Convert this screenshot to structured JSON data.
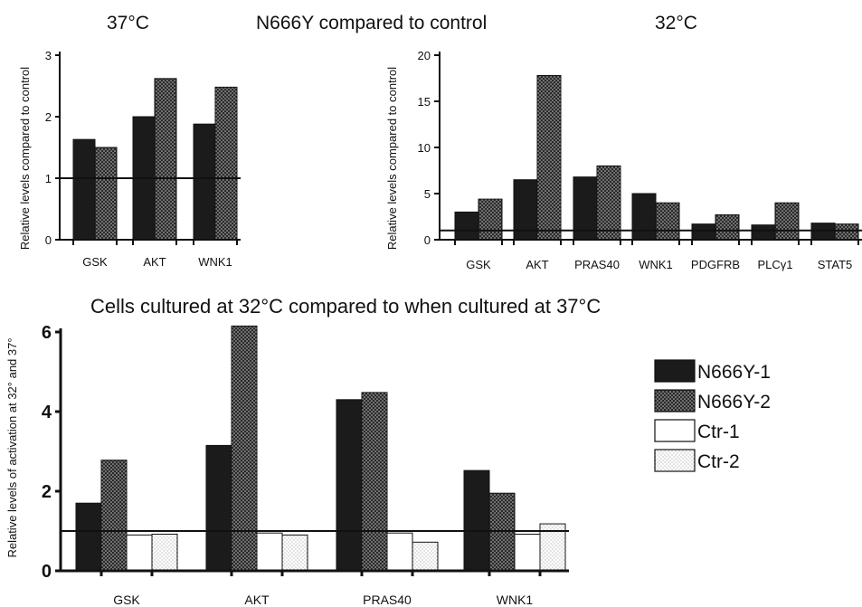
{
  "figure": {
    "heading_left": "37°C",
    "heading_center": "N666Y compared to control",
    "heading_right": "32°C",
    "heading_bottom": "Cells cultured at 32°C compared to when cultured at 37°C"
  },
  "colors": {
    "dark": "#1b1b1b",
    "pattern_dark": "#2a2a2a",
    "white": "#ffffff",
    "axis": "#111111",
    "reference_line": "#111111"
  },
  "chart_data": [
    {
      "type": "bar",
      "title": "37°C",
      "ylabel": "Relative levels compared to control",
      "categories": [
        "GSK",
        "AKT",
        "WNK1"
      ],
      "series": [
        {
          "pattern": "solid",
          "values": [
            1.63,
            2.0,
            1.88
          ]
        },
        {
          "pattern": "dense-dots",
          "values": [
            1.5,
            2.62,
            2.48
          ]
        }
      ],
      "ylim": [
        0,
        3
      ],
      "yticks": [
        "0",
        "1",
        "2",
        "3"
      ],
      "reference_line": 1
    },
    {
      "type": "bar",
      "title": "32°C",
      "ylabel": "Relative levels compared to control",
      "categories": [
        "GSK",
        "AKT",
        "PRAS40",
        "WNK1",
        "PDGFRB",
        "PLCγ1",
        "STAT5"
      ],
      "series": [
        {
          "pattern": "solid",
          "values": [
            3.0,
            6.5,
            6.8,
            5.0,
            1.7,
            1.6,
            1.8
          ]
        },
        {
          "pattern": "dense-dots",
          "values": [
            4.4,
            17.8,
            8.0,
            4.0,
            2.7,
            4.0,
            1.7
          ]
        }
      ],
      "ylim": [
        0,
        20
      ],
      "yticks": [
        "0",
        "5",
        "10",
        "15",
        "20"
      ],
      "reference_line": 1
    },
    {
      "type": "bar",
      "title": "Cells cultured at 32°C compared to when cultured at 37°C",
      "ylabel": "Relative levels of activation at 32° and 37°",
      "categories": [
        "GSK",
        "AKT",
        "PRAS40",
        "WNK1"
      ],
      "series": [
        {
          "name": "N666Y-1",
          "pattern": "solid",
          "values": [
            1.7,
            3.15,
            4.3,
            2.52
          ]
        },
        {
          "name": "N666Y-2",
          "pattern": "dense-dots",
          "values": [
            2.78,
            6.15,
            4.48,
            1.95
          ]
        },
        {
          "name": "Ctr-1",
          "pattern": "white",
          "values": [
            0.9,
            0.95,
            0.95,
            0.92
          ]
        },
        {
          "name": "Ctr-2",
          "pattern": "light-dots",
          "values": [
            0.92,
            0.9,
            0.72,
            1.18
          ]
        }
      ],
      "ylim": [
        0,
        6
      ],
      "yticks": [
        "0",
        "2",
        "4",
        "6"
      ],
      "reference_line": 1,
      "legend": "right"
    }
  ]
}
